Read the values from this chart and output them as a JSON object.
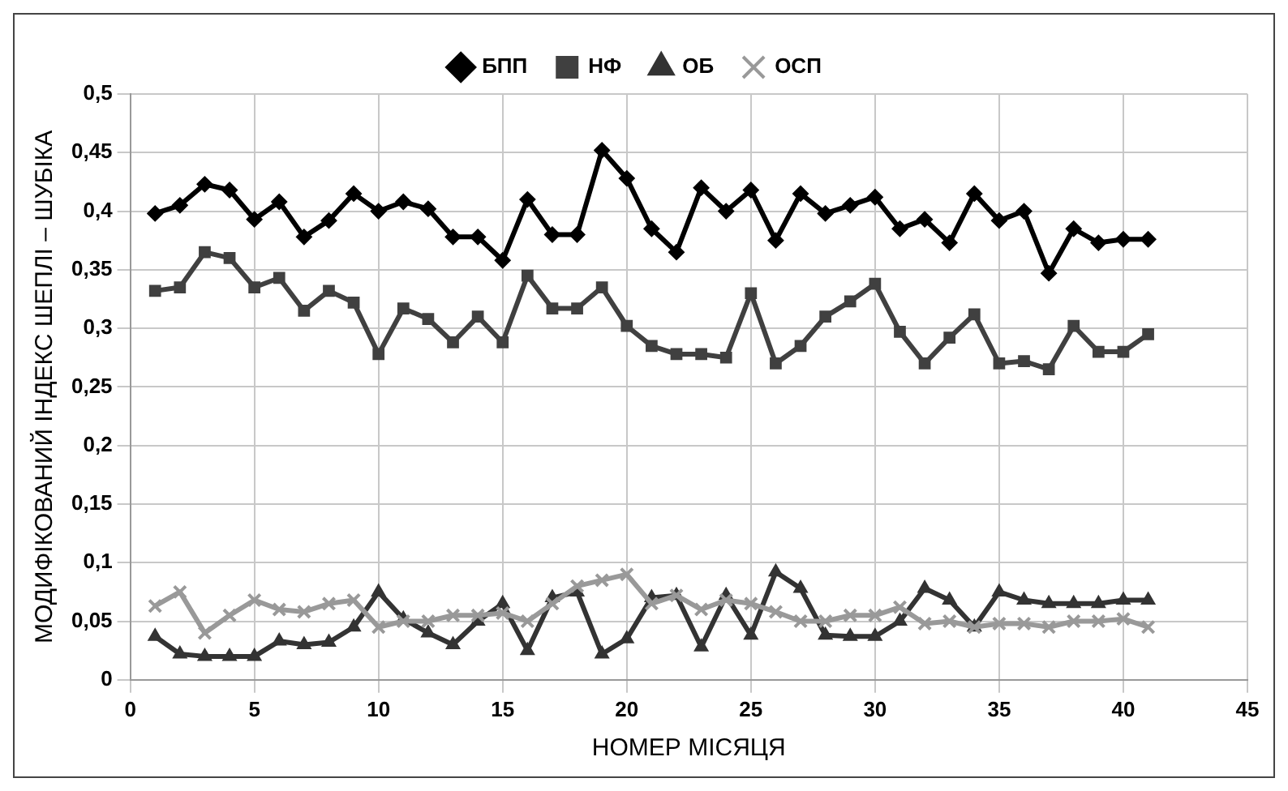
{
  "chart_data": {
    "type": "line",
    "xlabel": "НОМЕР МІСЯЦЯ",
    "ylabel": "МОДИФІКОВАНИЙ ІНДЕКС ШЕПЛІ – ШУБІКА",
    "x": [
      1,
      2,
      3,
      4,
      5,
      6,
      7,
      8,
      9,
      10,
      11,
      12,
      13,
      14,
      15,
      16,
      17,
      18,
      19,
      20,
      21,
      22,
      23,
      24,
      25,
      26,
      27,
      28,
      29,
      30,
      31,
      32,
      33,
      34,
      35,
      36,
      37,
      38,
      39,
      40,
      41
    ],
    "series": [
      {
        "name": "БПП",
        "color": "#000000",
        "marker": "diamond",
        "values": [
          0.398,
          0.405,
          0.423,
          0.418,
          0.393,
          0.408,
          0.378,
          0.392,
          0.415,
          0.4,
          0.408,
          0.402,
          0.378,
          0.378,
          0.358,
          0.41,
          0.38,
          0.38,
          0.452,
          0.428,
          0.385,
          0.365,
          0.42,
          0.4,
          0.418,
          0.375,
          0.415,
          0.398,
          0.405,
          0.412,
          0.385,
          0.393,
          0.373,
          0.415,
          0.392,
          0.4,
          0.347,
          0.385,
          0.373,
          0.376,
          0.376
        ]
      },
      {
        "name": "НФ",
        "color": "#404040",
        "marker": "square",
        "values": [
          0.332,
          0.335,
          0.365,
          0.36,
          0.335,
          0.343,
          0.315,
          0.332,
          0.322,
          0.278,
          0.317,
          0.308,
          0.288,
          0.31,
          0.288,
          0.345,
          0.317,
          0.317,
          0.335,
          0.302,
          0.285,
          0.278,
          0.278,
          0.275,
          0.33,
          0.27,
          0.285,
          0.31,
          0.323,
          0.338,
          0.297,
          0.27,
          0.292,
          0.312,
          0.27,
          0.272,
          0.265,
          0.302,
          0.28,
          0.28,
          0.295
        ]
      },
      {
        "name": "ОБ",
        "color": "#333333",
        "marker": "triangle",
        "values": [
          0.037,
          0.022,
          0.02,
          0.02,
          0.02,
          0.033,
          0.03,
          0.032,
          0.045,
          0.075,
          0.052,
          0.04,
          0.03,
          0.05,
          0.065,
          0.025,
          0.07,
          0.075,
          0.022,
          0.035,
          0.07,
          0.072,
          0.028,
          0.072,
          0.038,
          0.092,
          0.078,
          0.038,
          0.037,
          0.037,
          0.05,
          0.078,
          0.068,
          0.045,
          0.075,
          0.068,
          0.065,
          0.065,
          0.065,
          0.068,
          0.068
        ]
      },
      {
        "name": "ОСП",
        "color": "#999999",
        "marker": "cross",
        "values": [
          0.063,
          0.075,
          0.04,
          0.055,
          0.068,
          0.06,
          0.058,
          0.065,
          0.068,
          0.045,
          0.05,
          0.05,
          0.055,
          0.055,
          0.057,
          0.05,
          0.065,
          0.08,
          0.085,
          0.09,
          0.065,
          0.072,
          0.06,
          0.068,
          0.065,
          0.058,
          0.05,
          0.05,
          0.055,
          0.055,
          0.062,
          0.048,
          0.05,
          0.045,
          0.048,
          0.048,
          0.045,
          0.05,
          0.05,
          0.052,
          0.045
        ]
      }
    ],
    "xlim": [
      0,
      45
    ],
    "xticks": [
      0,
      5,
      10,
      15,
      20,
      25,
      30,
      35,
      40,
      45
    ],
    "ylim": [
      0,
      0.5
    ],
    "yticks": [
      0,
      {
        "value": 0.05,
        "label": "0,05"
      },
      {
        "value": 0.1,
        "label": "0,1"
      },
      {
        "value": 0.15,
        "label": "0,15"
      },
      {
        "value": 0.2,
        "label": "0,2"
      },
      {
        "value": 0.25,
        "label": "0,25"
      },
      {
        "value": 0.3,
        "label": "0,3"
      },
      {
        "value": 0.35,
        "label": "0,35"
      },
      {
        "value": 0.4,
        "label": "0,4"
      },
      {
        "value": 0.45,
        "label": "0,45"
      },
      {
        "value": 0.5,
        "label": "0,5"
      }
    ],
    "grid": true,
    "legend": "top",
    "line_style": "solid"
  }
}
